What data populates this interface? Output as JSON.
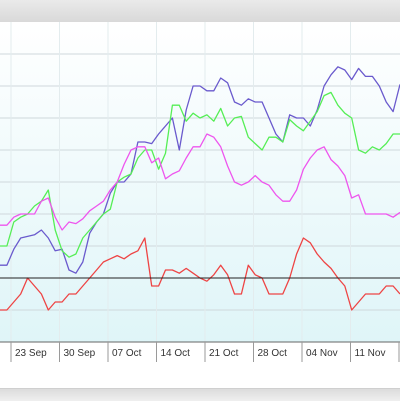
{
  "chart_data": {
    "type": "line",
    "x_tick_labels": [
      "23 Sep",
      "30 Sep",
      "07 Oct",
      "14 Oct",
      "21 Oct",
      "28 Oct",
      "04 Nov",
      "11 Nov"
    ],
    "baseline": 0,
    "ylim": [
      -40,
      160
    ],
    "grid": true,
    "series": [
      {
        "color": "#6a5acd",
        "values": [
          8,
          8,
          18,
          25,
          26,
          27,
          30,
          25,
          17,
          18,
          5,
          3,
          10,
          28,
          35,
          40,
          53,
          60,
          60,
          65,
          85,
          85,
          84,
          90,
          95,
          100,
          80,
          105,
          120,
          120,
          117,
          117,
          125,
          122,
          110,
          108,
          112,
          110,
          110,
          100,
          90,
          85,
          102,
          100,
          100,
          95,
          105,
          120,
          127,
          132,
          130,
          124,
          131,
          126,
          126,
          120,
          110,
          104,
          121
        ]
      },
      {
        "color": "#55ee55",
        "values": [
          20,
          20,
          35,
          38,
          40,
          45,
          48,
          55,
          30,
          17,
          13,
          15,
          25,
          30,
          35,
          40,
          43,
          60,
          63,
          65,
          75,
          80,
          80,
          68,
          78,
          108,
          108,
          98,
          103,
          100,
          102,
          98,
          106,
          95,
          100,
          101,
          88,
          84,
          80,
          88,
          88,
          85,
          99,
          95,
          92,
          98,
          104,
          114,
          116,
          108,
          103,
          100,
          80,
          78,
          82,
          80,
          84,
          90,
          90
        ]
      },
      {
        "color": "#ee55ee",
        "values": [
          33,
          33,
          38,
          40,
          40,
          40,
          48,
          50,
          38,
          30,
          35,
          34,
          37,
          42,
          45,
          48,
          55,
          60,
          71,
          80,
          82,
          82,
          72,
          75,
          62,
          65,
          67,
          75,
          82,
          82,
          90,
          88,
          82,
          70,
          60,
          58,
          60,
          64,
          60,
          58,
          52,
          48,
          48,
          55,
          68,
          75,
          80,
          82,
          74,
          70,
          64,
          50,
          52,
          40,
          40,
          40,
          40,
          38,
          41
        ]
      },
      {
        "color": "#ee4444",
        "values": [
          -20,
          -20,
          -15,
          -10,
          0,
          -5,
          -10,
          -20,
          -15,
          -15,
          -10,
          -10,
          -5,
          0,
          5,
          10,
          12,
          14,
          12,
          15,
          17,
          25,
          -5,
          -5,
          5,
          5,
          3,
          6,
          3,
          0,
          -2,
          2,
          8,
          2,
          -10,
          -10,
          8,
          2,
          0,
          -10,
          -10,
          -10,
          0,
          15,
          25,
          22,
          15,
          10,
          6,
          0,
          -5,
          -20,
          -15,
          -10,
          -10,
          -10,
          -5,
          -5,
          -10
        ]
      }
    ]
  }
}
